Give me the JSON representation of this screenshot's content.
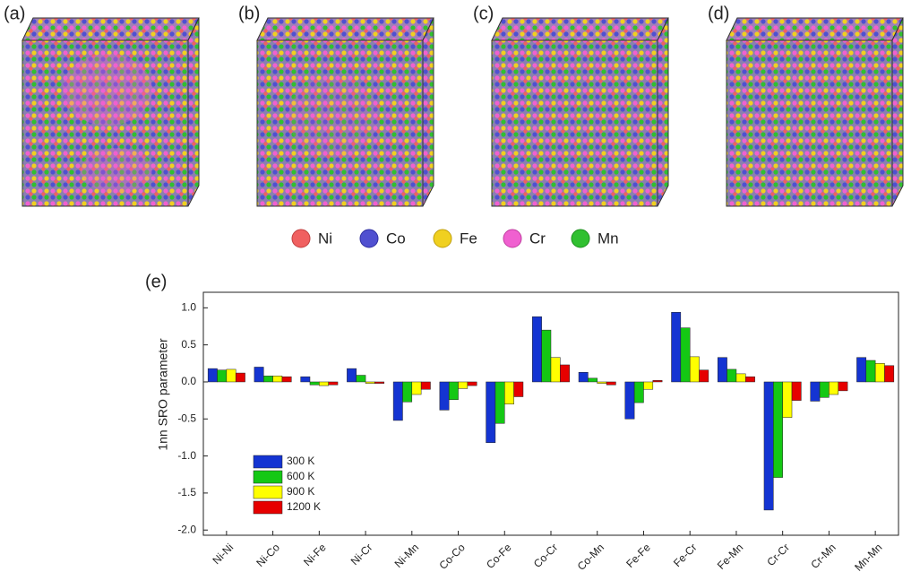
{
  "panels": [
    "(a)",
    "(b)",
    "(c)",
    "(d)"
  ],
  "elements": [
    "Ni",
    "Co",
    "Fe",
    "Cr",
    "Mn"
  ],
  "chart_data": {
    "type": "bar",
    "panel_label": "(e)",
    "y_label": "1nn SRO parameter",
    "categories": [
      "Ni-Ni",
      "Ni-Co",
      "Ni-Fe",
      "Ni-Cr",
      "Ni-Mn",
      "Co-Co",
      "Co-Fe",
      "Co-Cr",
      "Co-Mn",
      "Fe-Fe",
      "Fe-Cr",
      "Fe-Mn",
      "Cr-Cr",
      "Cr-Mn",
      "Mn-Mn"
    ],
    "series": [
      {
        "name": "300 K",
        "color": "#1434d2",
        "values": [
          0.18,
          0.2,
          0.07,
          0.18,
          -0.52,
          -0.38,
          -0.82,
          0.88,
          0.13,
          -0.5,
          0.94,
          0.33,
          -1.73,
          -0.26,
          0.33
        ]
      },
      {
        "name": "600 K",
        "color": "#14c814",
        "values": [
          0.16,
          0.08,
          -0.04,
          0.09,
          -0.27,
          -0.24,
          -0.56,
          0.7,
          0.05,
          -0.28,
          0.73,
          0.17,
          -1.29,
          -0.21,
          0.29
        ]
      },
      {
        "name": "900 K",
        "color": "#ffff00",
        "values": [
          0.17,
          0.08,
          -0.05,
          -0.02,
          -0.17,
          -0.09,
          -0.3,
          0.33,
          -0.02,
          -0.1,
          0.34,
          0.11,
          -0.48,
          -0.17,
          0.25
        ]
      },
      {
        "name": "1200 K",
        "color": "#e60000",
        "values": [
          0.12,
          0.07,
          -0.04,
          -0.02,
          -0.1,
          -0.05,
          -0.2,
          0.23,
          -0.04,
          0.02,
          0.16,
          0.07,
          -0.25,
          -0.12,
          0.22
        ]
      }
    ],
    "ylim": [
      -2.07,
      1.21
    ],
    "yticks": [
      {
        "value": 1,
        "label": "1.0"
      },
      {
        "value": 0.5,
        "label": "0.5"
      },
      {
        "value": 0,
        "label": "0.0"
      },
      {
        "value": -0.5,
        "label": "-0.5"
      },
      {
        "value": -1,
        "label": "-1.0"
      },
      {
        "value": -1.5,
        "label": "-1.5"
      },
      {
        "value": -2,
        "label": "-2.0"
      }
    ],
    "legend": "lower left"
  }
}
